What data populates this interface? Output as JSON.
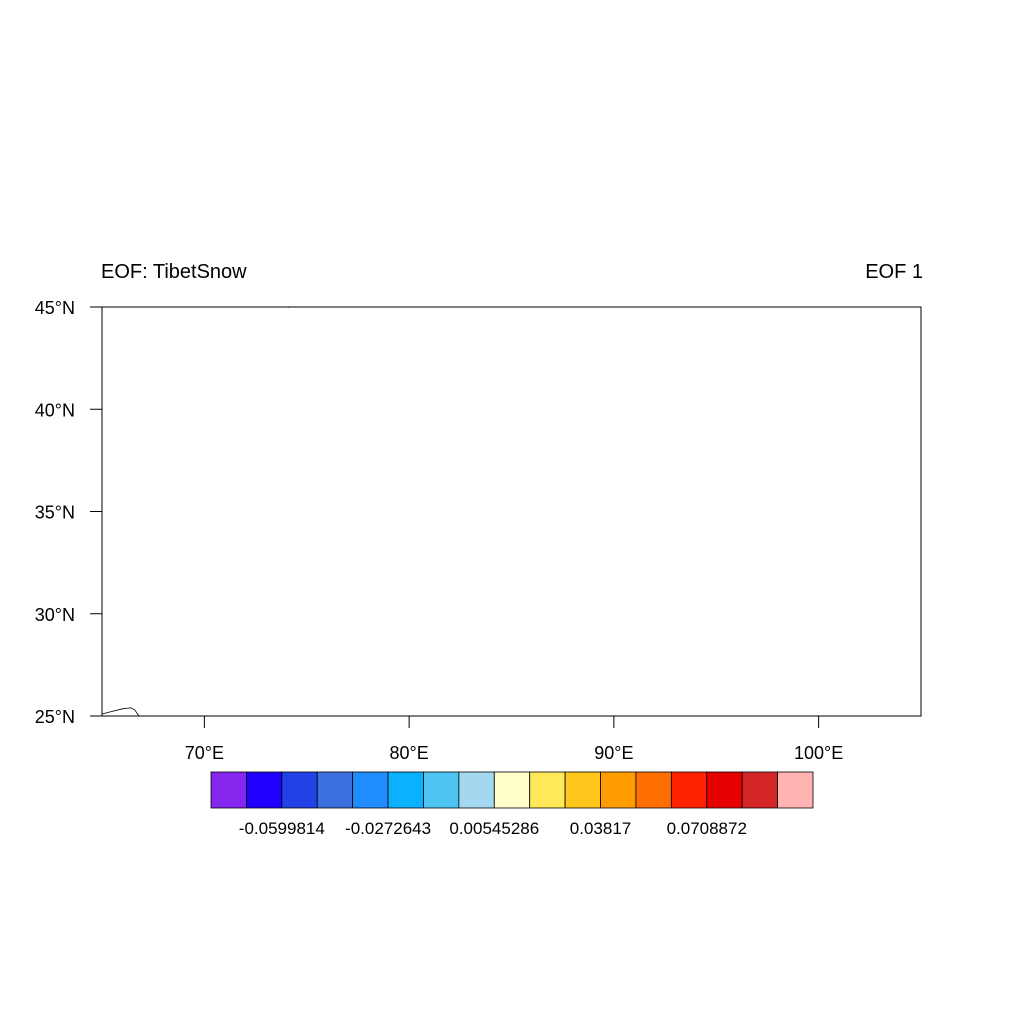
{
  "left_title": "EOF: TibetSnow",
  "right_title": "EOF 1",
  "map": {
    "lon_range": [
      65,
      105
    ],
    "lat_range": [
      25,
      45
    ],
    "lat_ticks": [
      {
        "value": 45,
        "label": "45°N"
      },
      {
        "value": 40,
        "label": "40°N"
      },
      {
        "value": 35,
        "label": "35°N"
      },
      {
        "value": 30,
        "label": "30°N"
      },
      {
        "value": 25,
        "label": "25°N"
      }
    ],
    "lon_ticks": [
      {
        "value": 70,
        "label": "70°E"
      },
      {
        "value": 80,
        "label": "80°E"
      },
      {
        "value": 90,
        "label": "90°E"
      },
      {
        "value": 100,
        "label": "100°E"
      }
    ],
    "coastlines": [
      [
        [
          65.0,
          25.1
        ],
        [
          65.4,
          25.2
        ],
        [
          66.0,
          25.35
        ],
        [
          66.4,
          25.4
        ],
        [
          66.6,
          25.3
        ],
        [
          66.8,
          25.0
        ]
      ],
      [
        [
          74.0,
          45.0
        ],
        [
          74.15,
          44.98
        ]
      ]
    ]
  },
  "colorbar": {
    "colors": [
      "#8426ed",
      "#1f00ff",
      "#2241e6",
      "#3b6fe0",
      "#1f8cff",
      "#0ab1ff",
      "#4dc4f2",
      "#a3d8f0",
      "#ffffcc",
      "#ffe959",
      "#ffc71c",
      "#ff9d00",
      "#ff6e00",
      "#ff2200",
      "#e60000",
      "#d42626",
      "#ffb3b3"
    ],
    "labels": [
      {
        "boundary": 2,
        "text": "-0.0599814"
      },
      {
        "boundary": 5,
        "text": "-0.0272643"
      },
      {
        "boundary": 8,
        "text": "0.00545286"
      },
      {
        "boundary": 11,
        "text": "0.03817"
      },
      {
        "boundary": 14,
        "text": "0.0708872"
      }
    ]
  }
}
